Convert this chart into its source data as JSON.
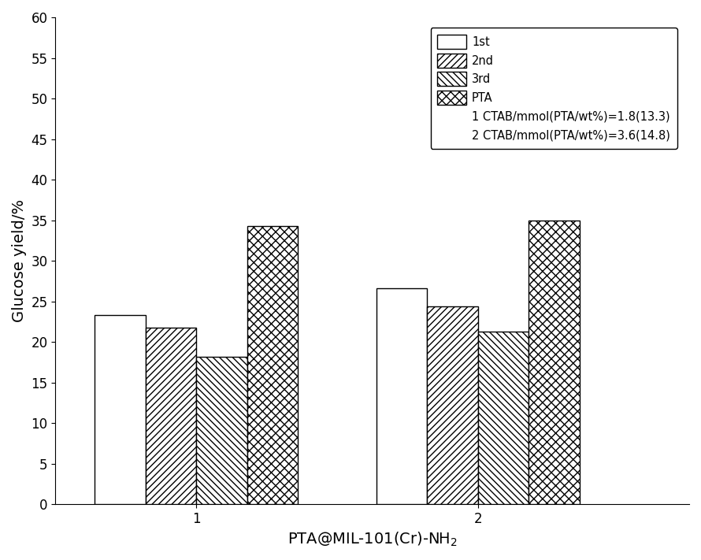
{
  "groups": [
    "1",
    "2"
  ],
  "series": [
    "1st",
    "2nd",
    "3rd",
    "PTA"
  ],
  "values": [
    [
      23.3,
      21.8,
      18.2,
      34.3
    ],
    [
      26.6,
      24.4,
      21.3,
      35.0
    ]
  ],
  "bar_colors": [
    "white",
    "white",
    "white",
    "white"
  ],
  "bar_edgecolors": [
    "black",
    "black",
    "black",
    "black"
  ],
  "xlabel": "PTA@MIL-101(Cr)-NH$_2$",
  "ylabel": "Glucose yield/%",
  "ylim": [
    0,
    60
  ],
  "yticks": [
    0,
    5,
    10,
    15,
    20,
    25,
    30,
    35,
    40,
    45,
    50,
    55,
    60
  ],
  "legend_labels": [
    "1st",
    "2nd",
    "3rd",
    "PTA"
  ],
  "annotation1": "1 CTAB/mmol(PTA/wt%)=1.8(13.3)",
  "annotation2": "2 CTAB/mmol(PTA/wt%)=3.6(14.8)",
  "bar_width": 0.18,
  "group_positions": [
    1.0,
    2.0
  ],
  "figsize": [
    8.9,
    7.11
  ],
  "dpi": 100
}
